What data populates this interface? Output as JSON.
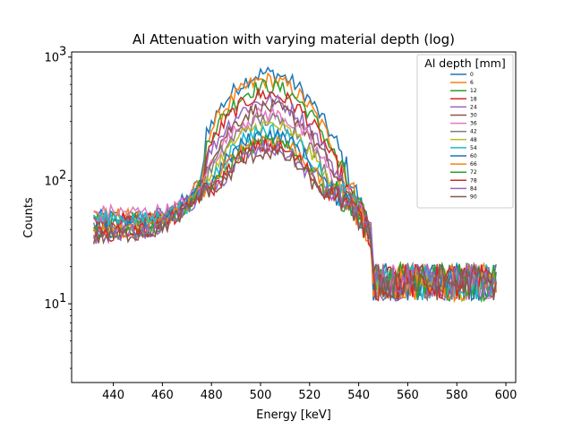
{
  "chart_data": {
    "type": "line",
    "title": "Al Attenuation with varying material depth (log)",
    "xlabel": "Energy [keV]",
    "ylabel": "Counts",
    "xlim": [
      423,
      604
    ],
    "ylim": [
      2.3,
      1100
    ],
    "yscale": "log",
    "x_ticks": [
      440,
      460,
      480,
      500,
      520,
      540,
      560,
      580,
      600
    ],
    "x_tick_labels": [
      "440",
      "460",
      "480",
      "500",
      "520",
      "540",
      "560",
      "580",
      "600"
    ],
    "y_ticks": [
      10,
      100,
      1000
    ],
    "y_tick_labels": [
      "10",
      "10",
      "10"
    ],
    "y_tick_exponents": [
      "1",
      "2",
      "3"
    ],
    "grid": false,
    "legend": {
      "title": "Al depth [mm]",
      "placement": "top-right"
    },
    "x_range": [
      432,
      596
    ],
    "x_step": 1,
    "plateau_x": [
      432,
      455,
      462,
      470,
      478
    ],
    "series": [
      {
        "name": "0",
        "color": "#1f77b4",
        "peak": 740,
        "plateau": [
          50,
          50,
          55,
          70,
          110
        ]
      },
      {
        "name": "6",
        "color": "#ff7f0e",
        "peak": 650,
        "plateau": [
          52,
          50,
          55,
          68,
          105
        ]
      },
      {
        "name": "12",
        "color": "#2ca02c",
        "peak": 580,
        "plateau": [
          48,
          49,
          54,
          67,
          102
        ]
      },
      {
        "name": "18",
        "color": "#d62728",
        "peak": 500,
        "plateau": [
          46,
          48,
          53,
          66,
          100
        ]
      },
      {
        "name": "24",
        "color": "#9467bd",
        "peak": 440,
        "plateau": [
          44,
          47,
          52,
          65,
          98
        ]
      },
      {
        "name": "30",
        "color": "#8c564b",
        "peak": 390,
        "plateau": [
          43,
          46,
          51,
          64,
          96
        ]
      },
      {
        "name": "36",
        "color": "#e377c2",
        "peak": 345,
        "plateau": [
          55,
          55,
          57,
          66,
          98
        ]
      },
      {
        "name": "42",
        "color": "#7f7f7f",
        "peak": 310,
        "plateau": [
          42,
          45,
          50,
          63,
          94
        ]
      },
      {
        "name": "48",
        "color": "#bcbd22",
        "peak": 280,
        "plateau": [
          40,
          43,
          49,
          62,
          92
        ]
      },
      {
        "name": "54",
        "color": "#17becf",
        "peak": 255,
        "plateau": [
          50,
          48,
          52,
          63,
          92
        ]
      },
      {
        "name": "60",
        "color": "#1f77b4",
        "peak": 235,
        "plateau": [
          39,
          42,
          48,
          61,
          90
        ]
      },
      {
        "name": "66",
        "color": "#ff7f0e",
        "peak": 215,
        "plateau": [
          38,
          41,
          47,
          60,
          88
        ]
      },
      {
        "name": "72",
        "color": "#2ca02c",
        "peak": 200,
        "plateau": [
          37,
          40,
          46,
          59,
          87
        ]
      },
      {
        "name": "78",
        "color": "#d62728",
        "peak": 190,
        "plateau": [
          36,
          40,
          46,
          58,
          86
        ]
      },
      {
        "name": "84",
        "color": "#9467bd",
        "peak": 180,
        "plateau": [
          35,
          39,
          45,
          57,
          85
        ]
      },
      {
        "name": "90",
        "color": "#8c564b",
        "peak": 170,
        "plateau": [
          34,
          38,
          44,
          56,
          84
        ]
      }
    ],
    "peak_center": 503,
    "tail_level": 15
  }
}
